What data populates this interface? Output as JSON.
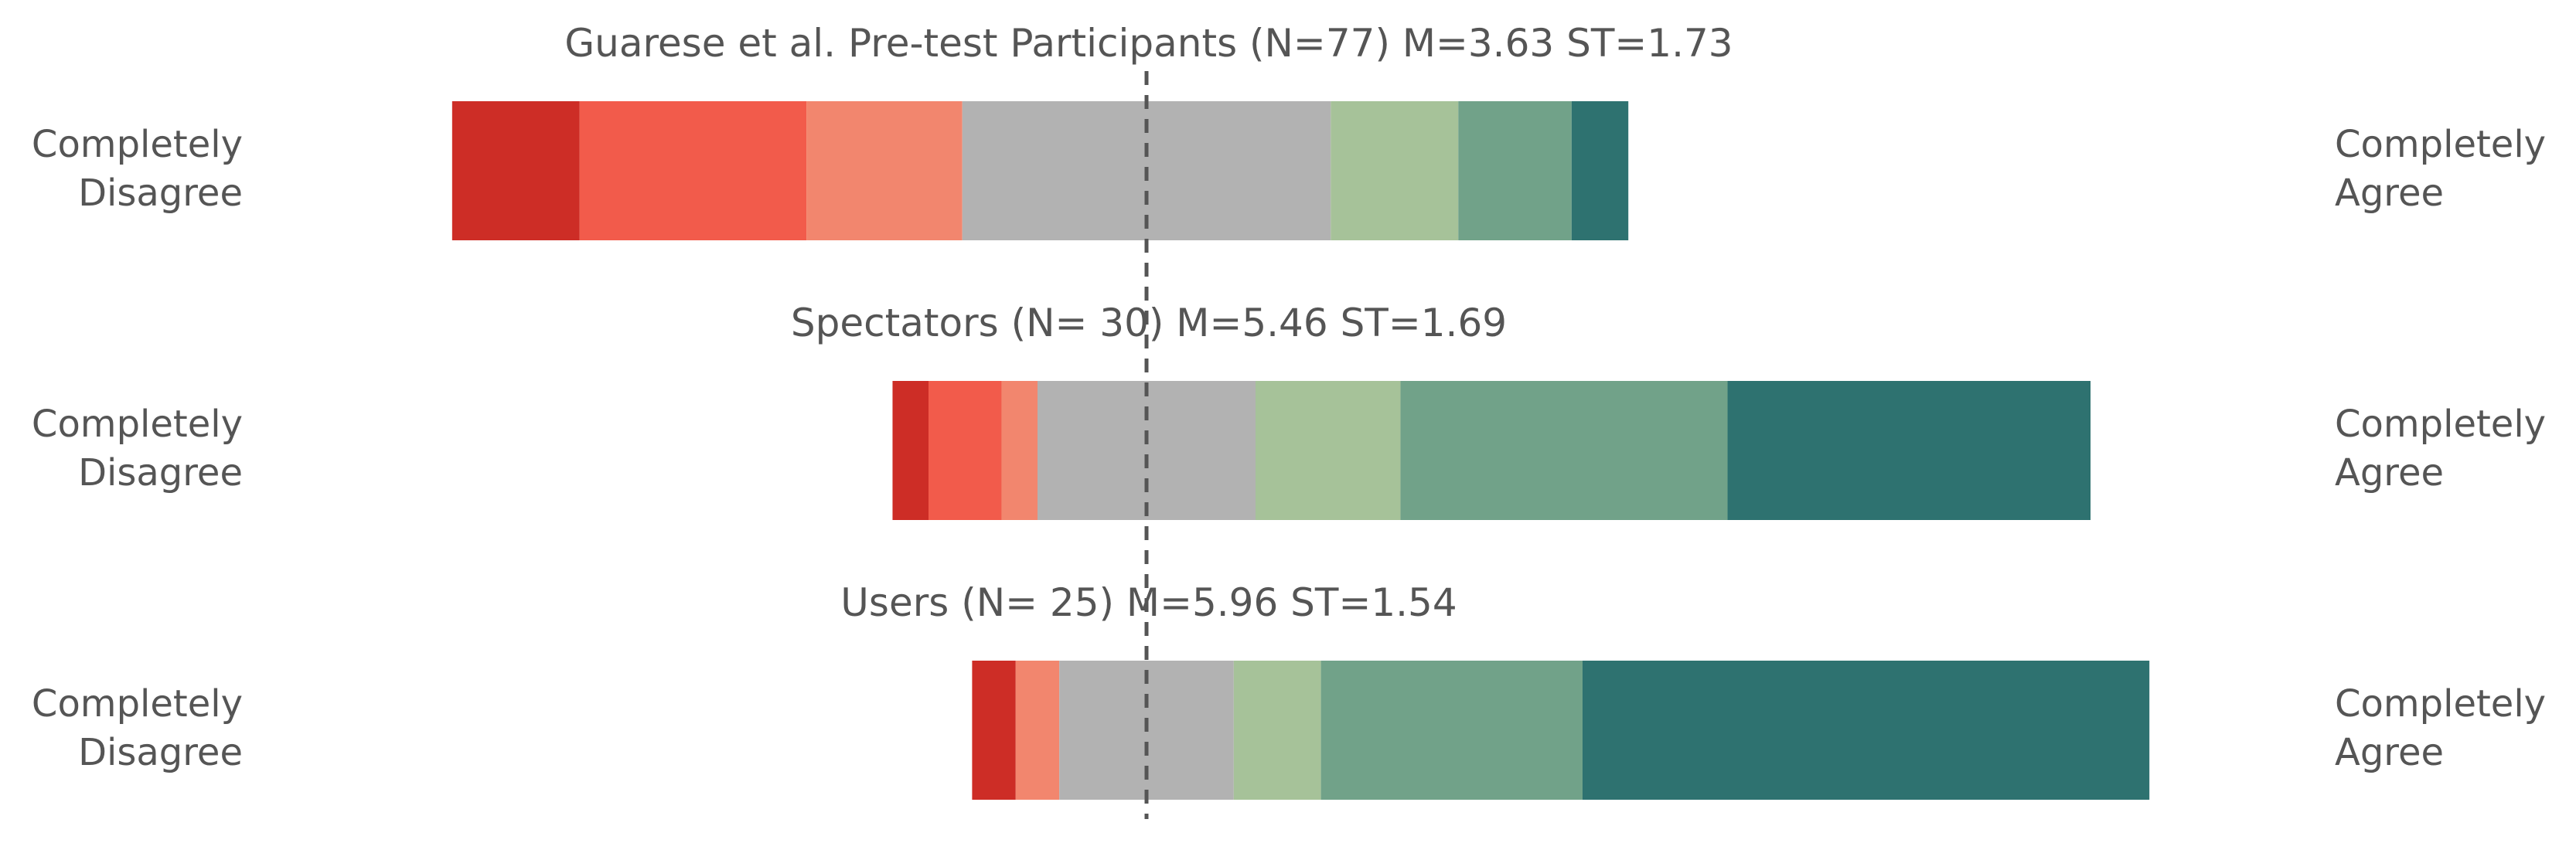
{
  "chart_data": {
    "type": "bar",
    "subtype": "diverging-stacked-likert",
    "scale_left_label": "Completely Disagree",
    "scale_right_label": "Completely Agree",
    "scale_left_lines": [
      "Completely",
      "Disagree"
    ],
    "scale_right_lines": [
      "Completely",
      "Agree"
    ],
    "levels": [
      1,
      2,
      3,
      4,
      5,
      6,
      7
    ],
    "neutral_level": 4,
    "colors": [
      "#cd2d26",
      "#f25b4b",
      "#f2866e",
      "#b2b2b2",
      "#a6c299",
      "#71a289",
      "#2e7270"
    ],
    "center_line": true,
    "groups": [
      {
        "title": "Guarese et al. Pre-test Participants (N=77)    M=3.63    ST=1.73",
        "n": 77,
        "mean": 3.63,
        "st": 1.73,
        "percentages": [
          11.7,
          20.8,
          14.3,
          33.8,
          11.7,
          10.4,
          5.2
        ]
      },
      {
        "title": "Spectators (N= 30)   M=5.46    ST=1.69",
        "n": 30,
        "mean": 5.46,
        "st": 1.69,
        "percentages": [
          3.3,
          6.7,
          3.3,
          20.0,
          13.3,
          30.0,
          33.3
        ]
      },
      {
        "title": "Users (N= 25)    M=5.96    ST=1.54",
        "n": 25,
        "mean": 5.96,
        "st": 1.54,
        "percentages": [
          4.0,
          0,
          4.0,
          16.0,
          8.0,
          24.0,
          52.0
        ]
      }
    ]
  }
}
